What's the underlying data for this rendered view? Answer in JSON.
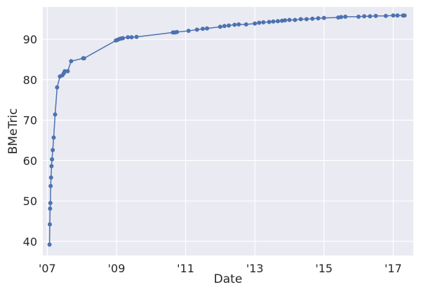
{
  "chart_data": {
    "type": "line",
    "xlabel": "Date",
    "ylabel": "BMeTric",
    "x_axis": "date",
    "xlim": [
      "2006-11-15",
      "2017-08-01"
    ],
    "ylim": [
      36.5,
      98
    ],
    "x_ticks": [
      {
        "date": "2007-01-01",
        "label": "'07"
      },
      {
        "date": "2009-01-01",
        "label": "'09"
      },
      {
        "date": "2011-01-01",
        "label": "'11"
      },
      {
        "date": "2013-01-01",
        "label": "'13"
      },
      {
        "date": "2015-01-01",
        "label": "'15"
      },
      {
        "date": "2017-01-01",
        "label": "'17"
      }
    ],
    "y_ticks": [
      40,
      50,
      60,
      70,
      80,
      90
    ],
    "grid": true,
    "colors": {
      "background": "#eaeaf2",
      "grid": "#ffffff",
      "series": "#4c72b0",
      "text": "#262626"
    },
    "series": [
      {
        "x": [
          "2007-01-25",
          "2007-01-28",
          "2007-01-31",
          "2007-02-03",
          "2007-02-06",
          "2007-02-10",
          "2007-02-15",
          "2007-02-20",
          "2007-02-28",
          "2007-03-10",
          "2007-03-25",
          "2007-04-15",
          "2007-05-15",
          "2007-06-10",
          "2007-06-25",
          "2007-07-05",
          "2007-08-05",
          "2007-09-10",
          "2008-01-15",
          "2008-01-25",
          "2008-12-25",
          "2009-01-15",
          "2009-02-01",
          "2009-02-20",
          "2009-03-10",
          "2009-05-01",
          "2009-06-10",
          "2009-08-01",
          "2010-08-20",
          "2010-09-10",
          "2010-10-01",
          "2011-02-01",
          "2011-05-01",
          "2011-07-01",
          "2011-08-15",
          "2012-01-01",
          "2012-02-15",
          "2012-04-01",
          "2012-06-01",
          "2012-07-15",
          "2012-10-01",
          "2013-01-01",
          "2013-02-15",
          "2013-04-01",
          "2013-06-01",
          "2013-07-15",
          "2013-09-01",
          "2013-10-15",
          "2013-11-15",
          "2014-01-01",
          "2014-03-01",
          "2014-05-01",
          "2014-07-01",
          "2014-09-01",
          "2014-11-01",
          "2015-01-01",
          "2015-06-01",
          "2015-07-01",
          "2015-08-15",
          "2016-01-01",
          "2016-03-01",
          "2016-05-01",
          "2016-07-01",
          "2016-10-15",
          "2017-01-01",
          "2017-02-15",
          "2017-04-15",
          "2017-05-01"
        ],
        "y": [
          39.2,
          44.2,
          48.1,
          49.5,
          53.7,
          55.8,
          58.6,
          60.3,
          62.6,
          65.7,
          71.4,
          78.1,
          80.8,
          81.1,
          81.6,
          82.1,
          82.1,
          84.6,
          85.3,
          85.3,
          89.7,
          89.9,
          90.1,
          90.2,
          90.3,
          90.5,
          90.5,
          90.6,
          91.7,
          91.7,
          91.8,
          92.1,
          92.4,
          92.6,
          92.7,
          93.1,
          93.3,
          93.4,
          93.6,
          93.7,
          93.7,
          93.9,
          94.1,
          94.2,
          94.3,
          94.4,
          94.5,
          94.6,
          94.7,
          94.8,
          94.8,
          95.0,
          95.0,
          95.1,
          95.2,
          95.3,
          95.4,
          95.5,
          95.6,
          95.6,
          95.7,
          95.7,
          95.8,
          95.8,
          95.9,
          95.9,
          95.9,
          95.9
        ]
      }
    ]
  }
}
